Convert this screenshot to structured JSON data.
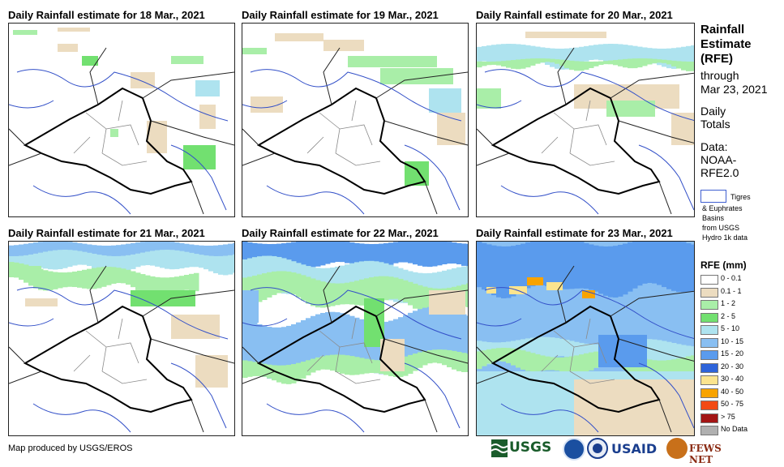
{
  "panels": [
    {
      "title": "Daily Rainfall estimate for 18 Mar., 2021",
      "pattern": "p18"
    },
    {
      "title": "Daily Rainfall estimate for 19 Mar., 2021",
      "pattern": "p19"
    },
    {
      "title": "Daily Rainfall estimate for 20 Mar., 2021",
      "pattern": "p20"
    },
    {
      "title": "Daily Rainfall estimate for 21 Mar., 2021",
      "pattern": "p21"
    },
    {
      "title": "Daily Rainfall estimate for 22 Mar., 2021",
      "pattern": "p22"
    },
    {
      "title": "Daily Rainfall estimate for 23 Mar., 2021",
      "pattern": "p23"
    }
  ],
  "sidebar": {
    "title_line1": "Rainfall",
    "title_line2": "Estimate",
    "title_line3": "(RFE)",
    "through": "through",
    "date": "Mar 23, 2021",
    "daily": "Daily",
    "totals": "Totals",
    "data_label": "Data:",
    "data_source1": "NOAA-",
    "data_source2": "RFE2.0",
    "basin_line1": "Tigres",
    "basin_line2": "& Euphrates",
    "basin_line3": "Basins",
    "basin_line4": "from USGS",
    "basin_line5": "Hydro 1k data"
  },
  "legend": {
    "title": "RFE (mm)",
    "items": [
      {
        "label": "0 - 0.1",
        "color": "#ffffff"
      },
      {
        "label": "0.1 - 1",
        "color": "#ecdcc0"
      },
      {
        "label": "1 - 2",
        "color": "#a9eea8"
      },
      {
        "label": "2 - 5",
        "color": "#72e070"
      },
      {
        "label": "5 - 10",
        "color": "#aee3ef"
      },
      {
        "label": "10 - 15",
        "color": "#89bff2"
      },
      {
        "label": "15 - 20",
        "color": "#5a9bed"
      },
      {
        "label": "20 - 30",
        "color": "#2e64da"
      },
      {
        "label": "30 - 40",
        "color": "#fbe48e"
      },
      {
        "label": "40 - 50",
        "color": "#f8a300"
      },
      {
        "label": "50 - 75",
        "color": "#f24a14"
      },
      {
        "label": "> 75",
        "color": "#a31515"
      },
      {
        "label": "No Data",
        "color": "#b0b0b0"
      }
    ]
  },
  "credit": "Map produced by USGS/EROS",
  "logos": {
    "usgs": "USGS",
    "usaid": "USAID",
    "fews": "FEWS NET"
  }
}
